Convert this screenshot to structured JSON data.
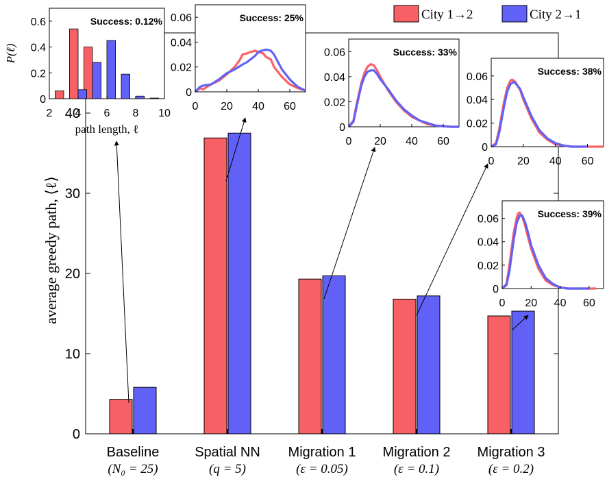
{
  "legend": {
    "placement": "top-right",
    "items": [
      {
        "label": "City 1→2",
        "color": "#F76165"
      },
      {
        "label": "City 2→1",
        "color": "#6161F7"
      }
    ]
  },
  "chart_data": [
    {
      "id": "main",
      "type": "bar",
      "ylabel": "average greedy path, ⟨ℓ⟩",
      "ylim": [
        0,
        50
      ],
      "yticks": [
        0,
        10,
        20,
        30,
        40
      ],
      "categories": [
        {
          "name": "Baseline",
          "param": "(N₀ = 25)"
        },
        {
          "name": "Spatial NN",
          "param": "(q = 5)"
        },
        {
          "name": "Migration 1",
          "param": "(ε = 0.05)"
        },
        {
          "name": "Migration 2",
          "param": "(ε = 0.1)"
        },
        {
          "name": "Migration 3",
          "param": "(ε = 0.2)"
        }
      ],
      "series": [
        {
          "name": "City 1→2",
          "color": "#F76165",
          "values": [
            4.3,
            36.9,
            19.3,
            16.8,
            14.7
          ]
        },
        {
          "name": "City 2→1",
          "color": "#6161F7",
          "values": [
            5.8,
            37.5,
            19.7,
            17.2,
            15.3
          ]
        }
      ]
    },
    {
      "id": "inset-baseline",
      "type": "bar",
      "annotation": "Success: 0.12%",
      "xlabel": "path length, ℓ",
      "ylabel": "P(ℓ)",
      "xlim": [
        2,
        10
      ],
      "ylim": [
        0,
        0.7
      ],
      "xticks": [
        2,
        4,
        6,
        8,
        10
      ],
      "yticks": [
        0,
        0.2,
        0.4,
        0.6
      ],
      "series": [
        {
          "name": "City 1→2",
          "x": [
            3,
            4,
            5,
            6,
            7,
            8,
            9
          ],
          "values": [
            0.06,
            0.54,
            0.4,
            0.0,
            0.0,
            0.0,
            0.0
          ]
        },
        {
          "name": "City 2→1",
          "x": [
            4,
            5,
            6,
            7,
            8,
            9
          ],
          "values": [
            0.07,
            0.28,
            0.45,
            0.19,
            0.02,
            0.005
          ]
        }
      ]
    },
    {
      "id": "inset-spatial",
      "type": "line",
      "annotation": "Success: 25%",
      "xlim": [
        0,
        70
      ],
      "ylim": [
        0,
        0.07
      ],
      "xticks": [
        0,
        20,
        40,
        60
      ],
      "yticks": [
        0,
        0.02,
        0.04,
        0.06
      ],
      "series": [
        {
          "name": "City 1→2",
          "x": [
            0,
            3,
            5,
            10,
            15,
            20,
            25,
            28,
            30,
            33,
            35,
            38,
            40,
            43,
            45,
            48,
            50,
            55,
            60,
            65,
            70
          ],
          "y": [
            0,
            0.003,
            0.002,
            0.006,
            0.009,
            0.014,
            0.02,
            0.025,
            0.03,
            0.031,
            0.032,
            0.033,
            0.032,
            0.031,
            0.028,
            0.026,
            0.02,
            0.012,
            0.006,
            0.003,
            0.001
          ]
        },
        {
          "name": "City 2→1",
          "x": [
            0,
            3,
            5,
            10,
            15,
            20,
            25,
            30,
            33,
            35,
            38,
            40,
            42,
            45,
            48,
            50,
            55,
            60,
            65,
            70
          ],
          "y": [
            0,
            0.004,
            0.005,
            0.006,
            0.01,
            0.015,
            0.018,
            0.022,
            0.024,
            0.026,
            0.029,
            0.032,
            0.033,
            0.034,
            0.033,
            0.03,
            0.018,
            0.01,
            0.004,
            0.001
          ]
        }
      ]
    },
    {
      "id": "inset-mig1",
      "type": "line",
      "annotation": "Success: 33%",
      "xlim": [
        0,
        70
      ],
      "ylim": [
        0,
        0.07
      ],
      "xticks": [
        0,
        20,
        40,
        60
      ],
      "yticks": [
        0,
        0.02,
        0.04,
        0.06
      ],
      "series": [
        {
          "name": "City 1→2",
          "x": [
            0,
            3,
            5,
            8,
            10,
            12,
            14,
            16,
            18,
            20,
            25,
            30,
            35,
            40,
            45,
            50,
            55,
            60,
            65,
            70
          ],
          "y": [
            0,
            0.005,
            0.018,
            0.035,
            0.043,
            0.048,
            0.05,
            0.049,
            0.045,
            0.04,
            0.029,
            0.02,
            0.013,
            0.008,
            0.005,
            0.002,
            0.001,
            0.0005,
            0,
            0
          ]
        },
        {
          "name": "City 2→1",
          "x": [
            0,
            3,
            5,
            8,
            10,
            12,
            14,
            16,
            18,
            20,
            25,
            30,
            35,
            40,
            45,
            50,
            55,
            60,
            65,
            70
          ],
          "y": [
            0,
            0.004,
            0.016,
            0.033,
            0.04,
            0.044,
            0.045,
            0.045,
            0.042,
            0.038,
            0.03,
            0.021,
            0.014,
            0.009,
            0.005,
            0.003,
            0.001,
            0.0005,
            0,
            0
          ]
        }
      ]
    },
    {
      "id": "inset-mig2",
      "type": "line",
      "annotation": "Success: 38%",
      "xlim": [
        0,
        70
      ],
      "ylim": [
        0,
        0.075
      ],
      "xticks": [
        0,
        20,
        40,
        60
      ],
      "yticks": [
        0,
        0.02,
        0.04,
        0.06
      ],
      "series": [
        {
          "name": "City 1→2",
          "x": [
            0,
            3,
            5,
            8,
            10,
            12,
            13,
            15,
            18,
            20,
            25,
            30,
            35,
            40,
            45,
            50,
            55,
            60,
            65,
            70
          ],
          "y": [
            0,
            0.003,
            0.015,
            0.038,
            0.05,
            0.056,
            0.057,
            0.055,
            0.048,
            0.04,
            0.024,
            0.012,
            0.006,
            0.002,
            0.001,
            0,
            0,
            0,
            0,
            0
          ]
        },
        {
          "name": "City 2→1",
          "x": [
            0,
            3,
            5,
            8,
            10,
            12,
            14,
            15,
            18,
            20,
            25,
            30,
            35,
            40,
            45,
            50,
            55,
            60
          ],
          "y": [
            0,
            0.002,
            0.012,
            0.034,
            0.047,
            0.053,
            0.055,
            0.054,
            0.049,
            0.042,
            0.026,
            0.014,
            0.007,
            0.003,
            0.001,
            0,
            0,
            0
          ]
        }
      ]
    },
    {
      "id": "inset-mig3",
      "type": "line",
      "annotation": "Success: 39%",
      "xlim": [
        0,
        70
      ],
      "ylim": [
        0,
        0.075
      ],
      "xticks": [
        0,
        20,
        40,
        60
      ],
      "yticks": [
        0,
        0.02,
        0.04,
        0.06
      ],
      "series": [
        {
          "name": "City 1→2",
          "x": [
            0,
            3,
            5,
            8,
            10,
            11,
            12,
            14,
            16,
            18,
            20,
            25,
            30,
            35,
            40,
            45,
            50,
            55,
            60,
            65
          ],
          "y": [
            0,
            0.004,
            0.02,
            0.048,
            0.06,
            0.064,
            0.065,
            0.061,
            0.053,
            0.043,
            0.034,
            0.017,
            0.007,
            0.003,
            0.001,
            0,
            0,
            0,
            0,
            0
          ]
        },
        {
          "name": "City 2→1",
          "x": [
            0,
            3,
            5,
            8,
            10,
            12,
            13,
            14,
            16,
            18,
            20,
            25,
            30,
            35,
            40,
            45,
            50,
            55,
            60
          ],
          "y": [
            0,
            0.003,
            0.015,
            0.042,
            0.056,
            0.062,
            0.063,
            0.062,
            0.056,
            0.047,
            0.037,
            0.02,
            0.009,
            0.004,
            0.001,
            0,
            0,
            0,
            0
          ]
        }
      ]
    }
  ]
}
